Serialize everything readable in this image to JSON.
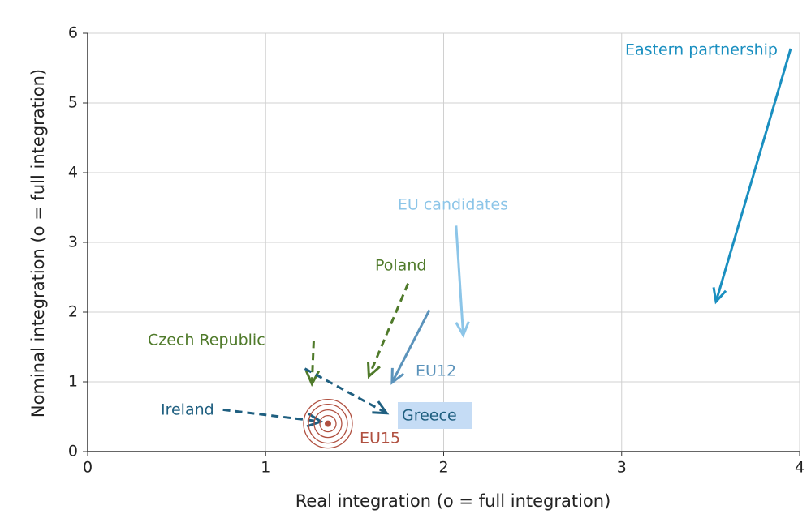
{
  "chart_data": {
    "type": "arrow",
    "x_label": "Real integration (o = full integration)",
    "y_label": "Nominal integration (o = full integration)",
    "xlim": [
      0,
      4
    ],
    "ylim": [
      0,
      6
    ],
    "xticks": [
      0,
      1,
      2,
      3,
      4
    ],
    "yticks": [
      0,
      1,
      2,
      3,
      4,
      5,
      6
    ],
    "grid": true,
    "series": [
      {
        "name": "Eastern partnership",
        "color": "#1a8fc0",
        "dashed": false,
        "x": [
          3.95,
          3.53
        ],
        "y": [
          5.78,
          2.15
        ]
      },
      {
        "name": "EU candidates",
        "color": "#8cc5e8",
        "dashed": false,
        "x": [
          2.07,
          2.11
        ],
        "y": [
          3.24,
          1.67
        ]
      },
      {
        "name": "EU12",
        "color": "#5b93bb",
        "dashed": false,
        "x": [
          1.92,
          1.71
        ],
        "y": [
          2.03,
          0.99
        ]
      },
      {
        "name": "Poland",
        "color": "#4f7a2a",
        "dashed": true,
        "x": [
          1.8,
          1.58
        ],
        "y": [
          2.41,
          1.08
        ]
      },
      {
        "name": "Czech Republic",
        "color": "#4f7a2a",
        "dashed": true,
        "x": [
          1.27,
          1.26
        ],
        "y": [
          1.59,
          0.97
        ]
      },
      {
        "name": "Greece",
        "color": "#1f5f80",
        "dashed": true,
        "x": [
          1.22,
          1.68
        ],
        "y": [
          1.19,
          0.55
        ]
      },
      {
        "name": "Ireland",
        "color": "#1f5f80",
        "dashed": true,
        "x": [
          0.76,
          1.31
        ],
        "y": [
          0.6,
          0.43
        ]
      },
      {
        "name": "EU15",
        "color": "#b05040",
        "dashed": false,
        "x": [
          1.35
        ],
        "y": [
          0.4
        ]
      }
    ]
  }
}
